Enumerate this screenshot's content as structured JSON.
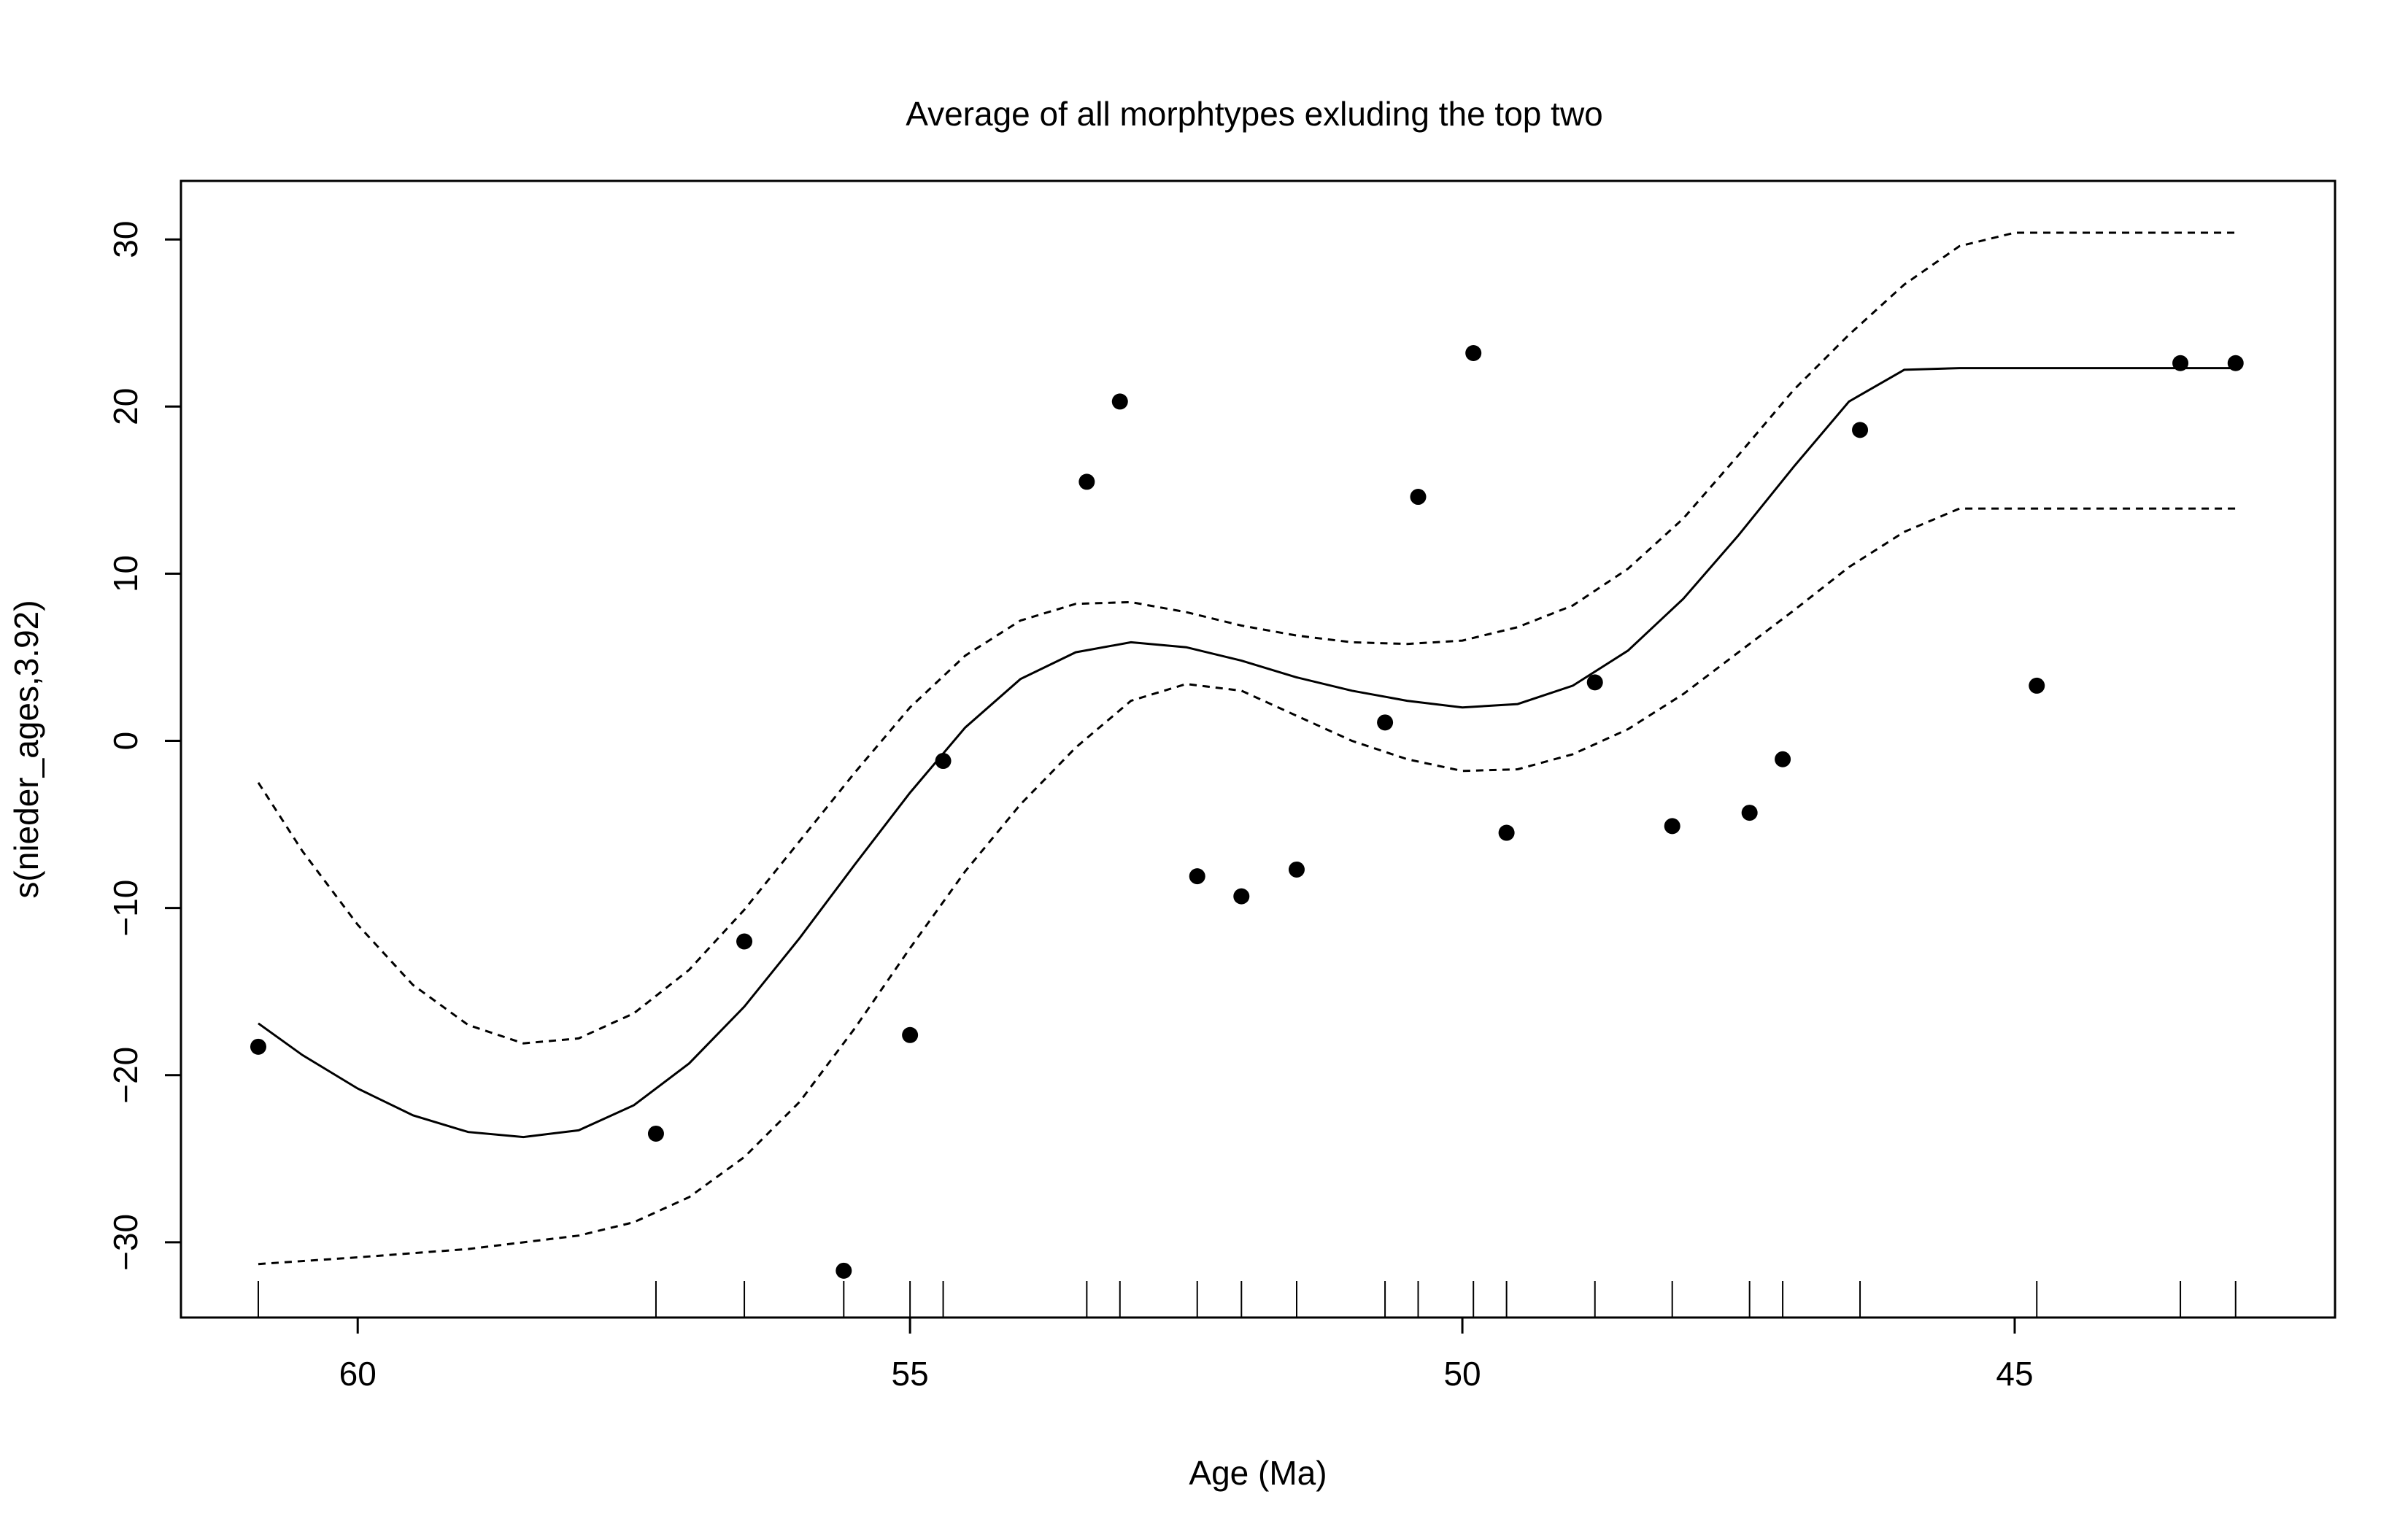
{
  "chart_data": {
    "type": "scatter",
    "title": "Average of all morphtypes exluding the top two",
    "xlabel": "Age (Ma)",
    "ylabel": "s(nieder_ages,3.92)",
    "x_reversed": true,
    "xlim": [
      61.6,
      42.1
    ],
    "ylim": [
      -34.5,
      33.5
    ],
    "x_ticks": [
      60,
      55,
      50,
      45
    ],
    "x_tick_labels": [
      "60",
      "55",
      "50",
      "45"
    ],
    "y_ticks": [
      -30,
      -20,
      -10,
      0,
      10,
      20,
      30
    ],
    "y_tick_labels": [
      "−30",
      "−20",
      "−10",
      "0",
      "10",
      "20",
      "30"
    ],
    "grid": false,
    "legend": "none",
    "colors": {
      "ink": "#000000",
      "background": "#ffffff"
    },
    "series": [
      {
        "style": "points",
        "x": [
          60.9,
          57.3,
          56.5,
          55.6,
          55.0,
          54.7,
          53.4,
          53.1,
          52.4,
          52.0,
          51.5,
          50.7,
          50.4,
          49.9,
          49.6,
          48.8,
          48.1,
          47.4,
          47.1,
          46.4,
          44.8,
          43.5,
          43.0
        ],
        "y": [
          -18.3,
          -23.5,
          -12.0,
          -31.7,
          -17.6,
          -1.2,
          15.5,
          20.3,
          -8.1,
          -9.3,
          -7.7,
          1.1,
          14.6,
          23.2,
          -5.5,
          3.5,
          -5.1,
          -4.3,
          -1.1,
          18.6,
          3.3,
          22.6,
          22.6
        ]
      },
      {
        "style": "solid-line",
        "x": [
          60.9,
          60.5,
          60.0,
          59.5,
          59.0,
          58.5,
          58.0,
          57.5,
          57.0,
          56.5,
          56.0,
          55.5,
          55.0,
          54.5,
          54.0,
          53.5,
          53.0,
          52.5,
          52.0,
          51.5,
          51.0,
          50.5,
          50.0,
          49.5,
          49.0,
          48.5,
          48.0,
          47.5,
          47.0,
          46.5,
          46.0,
          45.5,
          45.0,
          44.5,
          44.0,
          43.5,
          43.0
        ],
        "y": [
          -16.9,
          -18.8,
          -20.8,
          -22.4,
          -23.4,
          -23.7,
          -23.3,
          -21.8,
          -19.3,
          -15.9,
          -11.8,
          -7.4,
          -3.1,
          0.8,
          3.7,
          5.3,
          5.9,
          5.6,
          4.8,
          3.8,
          3.0,
          2.4,
          2.0,
          2.2,
          3.3,
          5.4,
          8.5,
          12.3,
          16.4,
          20.3,
          22.2,
          22.3,
          22.3,
          22.3,
          22.3,
          22.3,
          22.3
        ]
      },
      {
        "style": "dashed-line",
        "x": [
          60.9,
          60.5,
          60.0,
          59.5,
          59.0,
          58.5,
          58.0,
          57.5,
          57.0,
          56.5,
          56.0,
          55.5,
          55.0,
          54.5,
          54.0,
          53.5,
          53.0,
          52.5,
          52.0,
          51.5,
          51.0,
          50.5,
          50.0,
          49.5,
          49.0,
          48.5,
          48.0,
          47.5,
          47.0,
          46.5,
          46.0,
          45.5,
          45.0,
          44.5,
          44.0,
          43.5,
          43.0
        ],
        "y": [
          -2.5,
          -6.6,
          -11.0,
          -14.6,
          -17.0,
          -18.1,
          -17.8,
          -16.3,
          -13.7,
          -10.1,
          -6.0,
          -1.9,
          2.0,
          5.1,
          7.2,
          8.2,
          8.3,
          7.7,
          6.9,
          6.3,
          5.9,
          5.8,
          6.0,
          6.8,
          8.1,
          10.3,
          13.3,
          17.1,
          21.0,
          24.3,
          27.3,
          29.6,
          30.4,
          30.4,
          30.4,
          30.4,
          30.4
        ]
      },
      {
        "style": "dashed-line",
        "x": [
          60.9,
          60.0,
          59.0,
          58.0,
          57.5,
          57.0,
          56.5,
          56.0,
          55.5,
          55.0,
          54.5,
          54.0,
          53.5,
          53.0,
          52.5,
          52.0,
          51.5,
          51.0,
          50.5,
          50.0,
          49.5,
          49.0,
          48.5,
          48.0,
          47.5,
          47.0,
          46.5,
          46.0,
          45.5,
          45.0,
          44.5,
          44.0,
          43.5,
          43.0
        ],
        "y": [
          -31.3,
          -30.9,
          -30.4,
          -29.6,
          -28.8,
          -27.3,
          -24.9,
          -21.6,
          -17.2,
          -12.4,
          -7.8,
          -3.8,
          -0.4,
          2.4,
          3.4,
          3.0,
          1.5,
          0.0,
          -1.1,
          -1.8,
          -1.7,
          -0.8,
          0.7,
          2.8,
          5.3,
          7.8,
          10.4,
          12.5,
          13.9,
          13.9,
          13.9,
          13.9,
          13.9,
          13.9
        ]
      }
    ],
    "rug_x": [
      60.9,
      57.3,
      56.5,
      55.6,
      55.0,
      54.7,
      53.4,
      53.1,
      52.4,
      52.0,
      51.5,
      50.7,
      50.4,
      49.9,
      49.6,
      48.8,
      48.1,
      47.4,
      47.1,
      46.4,
      44.8,
      43.5,
      43.0
    ]
  }
}
